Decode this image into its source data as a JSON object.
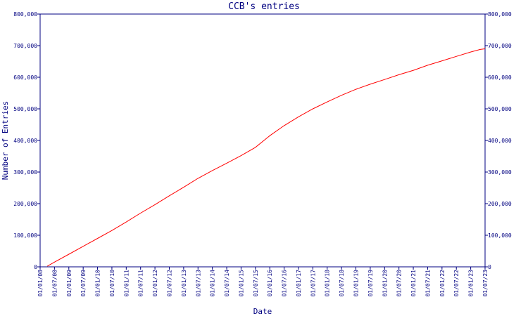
{
  "chart_data": {
    "type": "line",
    "title": "CCB's entries",
    "xlabel": "Date",
    "ylabel": "Number of Entries",
    "x_tick_labels": [
      "01/01/08",
      "01/07/08",
      "01/01/09",
      "01/07/09",
      "01/01/10",
      "01/07/10",
      "01/01/11",
      "01/07/11",
      "01/01/12",
      "01/07/12",
      "01/01/13",
      "01/07/13",
      "01/01/14",
      "01/07/14",
      "01/01/15",
      "01/07/15",
      "01/01/16",
      "01/07/16",
      "01/01/17",
      "01/07/17",
      "01/01/18",
      "01/07/18",
      "01/01/19",
      "01/07/19",
      "01/01/20",
      "01/07/20",
      "01/01/21",
      "01/07/21",
      "01/01/22",
      "01/07/22",
      "01/01/23",
      "01/07/23"
    ],
    "y_tick_labels": [
      "0",
      "100,000",
      "200,000",
      "300,000",
      "400,000",
      "500,000",
      "600,000",
      "700,000",
      "800,000"
    ],
    "y_ticks": [
      0,
      100000,
      200000,
      300000,
      400000,
      500000,
      600000,
      700000,
      800000
    ],
    "ylim": [
      0,
      800000
    ],
    "xlim": [
      "2008-01-01",
      "2023-07-01"
    ],
    "grid": false,
    "line_color": "#ff0000",
    "axis_color": "#000080",
    "series": [
      {
        "x": [
          "2008-04-01",
          "2008-07-01",
          "2009-01-01",
          "2009-07-01",
          "2010-01-01",
          "2010-07-01",
          "2011-01-01",
          "2011-07-01",
          "2012-01-01",
          "2012-07-01",
          "2013-01-01",
          "2013-07-01",
          "2014-01-01",
          "2014-07-01",
          "2015-01-01",
          "2015-07-01",
          "2016-01-01",
          "2016-07-01",
          "2017-01-01",
          "2017-07-01",
          "2018-01-01",
          "2018-07-01",
          "2019-01-01",
          "2019-07-01",
          "2020-01-01",
          "2020-07-01",
          "2021-01-01",
          "2021-07-01",
          "2022-01-01",
          "2022-07-01",
          "2023-01-01",
          "2023-05-01",
          "2023-07-01"
        ],
        "y": [
          2000,
          15000,
          40000,
          65000,
          90000,
          115000,
          142000,
          170000,
          197000,
          225000,
          252000,
          280000,
          305000,
          328000,
          352000,
          378000,
          415000,
          447000,
          475000,
          500000,
          522000,
          543000,
          562000,
          578000,
          593000,
          608000,
          622000,
          638000,
          652000,
          666000,
          680000,
          688000,
          690000
        ]
      }
    ]
  }
}
